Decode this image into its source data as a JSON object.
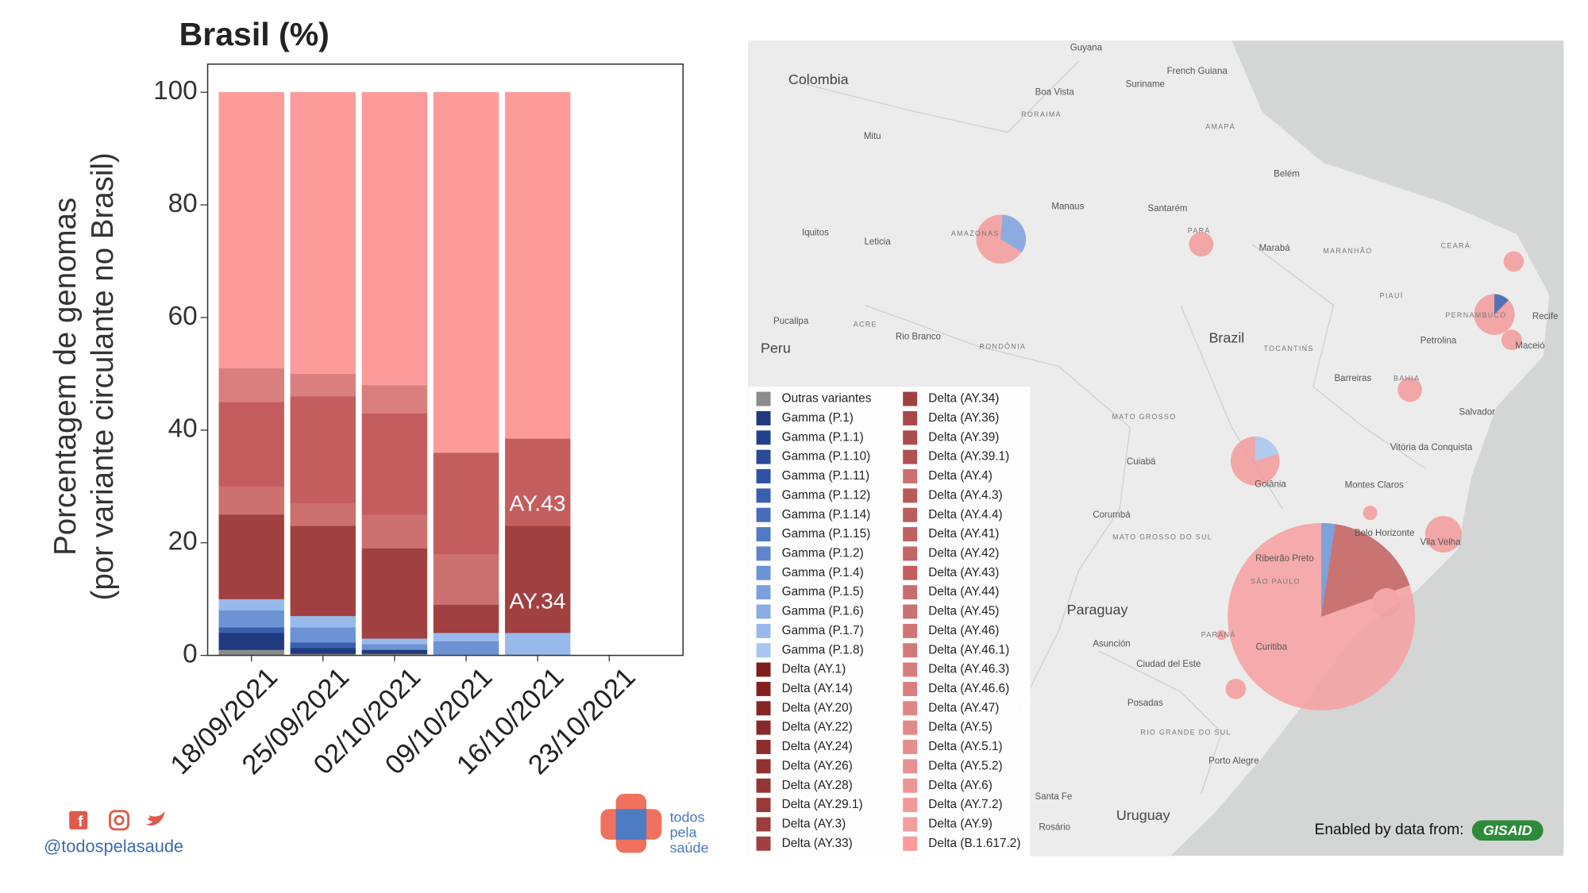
{
  "chart_data": {
    "type": "stacked_bar",
    "title": "Brasil (%)",
    "y_label": [
      "Porcentagem de genomas",
      "(por variante circulante no Brasil)"
    ],
    "categories": [
      "18/09/2021",
      "25/09/2021",
      "02/10/2021",
      "09/10/2021",
      "16/10/2021",
      "23/10/2021"
    ],
    "ylim": [
      0,
      105
    ],
    "yticks": [
      0,
      20,
      40,
      60,
      80,
      100
    ],
    "annotations": [
      {
        "text": "AY.43"
      },
      {
        "text": "AY.34"
      }
    ],
    "series": [
      {
        "name": "Outras variantes",
        "color": "#8c8c8c",
        "values": [
          1,
          0.3,
          0.3,
          0,
          0,
          null
        ]
      },
      {
        "name": "Gamma (P.1)",
        "color": "#1f3a7e",
        "values": [
          3,
          1,
          0.7,
          0,
          0,
          null
        ]
      },
      {
        "name": "Gamma (P.1.1)",
        "color": "#22418b",
        "values": [
          0,
          0,
          0,
          0,
          0,
          null
        ]
      },
      {
        "name": "Gamma (P.1.10)",
        "color": "#284a97",
        "values": [
          0,
          0,
          0,
          0,
          0,
          null
        ]
      },
      {
        "name": "Gamma (P.1.11)",
        "color": "#2e53a3",
        "values": [
          0,
          0,
          0,
          0,
          0,
          null
        ]
      },
      {
        "name": "Gamma (P.1.12)",
        "color": "#3a5fae",
        "values": [
          1,
          1,
          0,
          0,
          0,
          null
        ]
      },
      {
        "name": "Gamma (P.1.14)",
        "color": "#466cb9",
        "values": [
          0,
          0,
          0,
          0,
          0,
          null
        ]
      },
      {
        "name": "Gamma (P.1.15)",
        "color": "#5279c3",
        "values": [
          0,
          0,
          0,
          0,
          0,
          null
        ]
      },
      {
        "name": "Gamma (P.1.2)",
        "color": "#5f86cc",
        "values": [
          0,
          0,
          0,
          0,
          0,
          null
        ]
      },
      {
        "name": "Gamma (P.1.4)",
        "color": "#6d93d5",
        "values": [
          3,
          2.7,
          1,
          2.5,
          0,
          null
        ]
      },
      {
        "name": "Gamma (P.1.5)",
        "color": "#7ba0dd",
        "values": [
          0,
          0,
          0,
          0,
          0,
          null
        ]
      },
      {
        "name": "Gamma (P.1.6)",
        "color": "#89ade4",
        "values": [
          0,
          0,
          0,
          0,
          0,
          null
        ]
      },
      {
        "name": "Gamma (P.1.7)",
        "color": "#98baea",
        "values": [
          2,
          2,
          1,
          1.5,
          4,
          null
        ]
      },
      {
        "name": "Gamma (P.1.8)",
        "color": "#a8c6f0",
        "values": [
          0,
          0,
          0,
          0,
          0,
          null
        ]
      },
      {
        "name": "Delta (AY.1)",
        "color": "#7f1d1d",
        "values": [
          0,
          0,
          0,
          0,
          0,
          null
        ]
      },
      {
        "name": "Delta (AY.14)",
        "color": "#832121",
        "values": [
          0,
          0,
          0,
          0,
          0,
          null
        ]
      },
      {
        "name": "Delta (AY.20)",
        "color": "#862525",
        "values": [
          0,
          0,
          0,
          0,
          0,
          null
        ]
      },
      {
        "name": "Delta (AY.22)",
        "color": "#8a2929",
        "values": [
          0,
          0,
          0,
          0,
          0,
          null
        ]
      },
      {
        "name": "Delta (AY.24)",
        "color": "#8e2d2d",
        "values": [
          0,
          0,
          0,
          0,
          0,
          null
        ]
      },
      {
        "name": "Delta (AY.26)",
        "color": "#913131",
        "values": [
          0,
          0,
          0,
          0,
          0,
          null
        ]
      },
      {
        "name": "Delta (AY.28)",
        "color": "#953535",
        "values": [
          0,
          0,
          0,
          0,
          0,
          null
        ]
      },
      {
        "name": "Delta (AY.29.1)",
        "color": "#993939",
        "values": [
          0,
          0,
          0,
          0,
          0,
          null
        ]
      },
      {
        "name": "Delta (AY.3)",
        "color": "#9c3d3d",
        "values": [
          0,
          0,
          0,
          0,
          0,
          null
        ]
      },
      {
        "name": "Delta (AY.33)",
        "color": "#a04141",
        "values": [
          0,
          0,
          0,
          0,
          0,
          null
        ]
      },
      {
        "name": "Delta (AY.34)",
        "color": "#a04040",
        "values": [
          15,
          16,
          16,
          5,
          19,
          null
        ]
      },
      {
        "name": "Delta (AY.36)",
        "color": "#a74949",
        "values": [
          0,
          0,
          0,
          0,
          0,
          null
        ]
      },
      {
        "name": "Delta (AY.39)",
        "color": "#ab4d4d",
        "values": [
          0,
          0,
          0,
          0,
          0,
          null
        ]
      },
      {
        "name": "Delta (AY.39.1)",
        "color": "#af5151",
        "values": [
          0,
          0,
          0,
          0,
          0,
          null
        ]
      },
      {
        "name": "Delta (AY.4)",
        "color": "#cc7070",
        "values": [
          5,
          4,
          6,
          9,
          0,
          null
        ]
      },
      {
        "name": "Delta (AY.4.3)",
        "color": "#b65959",
        "values": [
          0,
          0,
          0,
          0,
          0,
          null
        ]
      },
      {
        "name": "Delta (AY.4.4)",
        "color": "#ba5d5d",
        "values": [
          0,
          0,
          0,
          0,
          0,
          null
        ]
      },
      {
        "name": "Delta (AY.41)",
        "color": "#bd6161",
        "values": [
          0,
          0,
          0,
          0,
          0,
          null
        ]
      },
      {
        "name": "Delta (AY.42)",
        "color": "#c16565",
        "values": [
          0,
          0,
          0,
          0,
          0,
          null
        ]
      },
      {
        "name": "Delta (AY.43)",
        "color": "#c45e5e",
        "values": [
          15,
          19,
          18,
          18,
          15.5,
          null
        ]
      },
      {
        "name": "Delta (AY.44)",
        "color": "#c86d6d",
        "values": [
          0,
          0,
          0,
          0,
          0,
          null
        ]
      },
      {
        "name": "Delta (AY.45)",
        "color": "#cc7171",
        "values": [
          0,
          0,
          0,
          0,
          0,
          null
        ]
      },
      {
        "name": "Delta (AY.46)",
        "color": "#d07575",
        "values": [
          0,
          0,
          0,
          0,
          0,
          null
        ]
      },
      {
        "name": "Delta (AY.46.1)",
        "color": "#d37979",
        "values": [
          0,
          0,
          0,
          0,
          0,
          null
        ]
      },
      {
        "name": "Delta (AY.46.3)",
        "color": "#d77d7d",
        "values": [
          0,
          0,
          0,
          0,
          0,
          null
        ]
      },
      {
        "name": "Delta (AY.46.6)",
        "color": "#d97f7f",
        "values": [
          6,
          4,
          5,
          0,
          0,
          null
        ]
      },
      {
        "name": "Delta (AY.47)",
        "color": "#de8585",
        "values": [
          0,
          0,
          0,
          0,
          0,
          null
        ]
      },
      {
        "name": "Delta (AY.5)",
        "color": "#e28989",
        "values": [
          0,
          0,
          0,
          0,
          0,
          null
        ]
      },
      {
        "name": "Delta (AY.5.1)",
        "color": "#e68d8d",
        "values": [
          0,
          0,
          0,
          0,
          0,
          null
        ]
      },
      {
        "name": "Delta (AY.5.2)",
        "color": "#e99191",
        "values": [
          0,
          0,
          0,
          0,
          0,
          null
        ]
      },
      {
        "name": "Delta (AY.6)",
        "color": "#ed9595",
        "values": [
          0,
          0,
          0,
          0,
          0,
          null
        ]
      },
      {
        "name": "Delta (AY.7.2)",
        "color": "#f19999",
        "values": [
          0,
          0,
          0,
          0,
          0,
          null
        ]
      },
      {
        "name": "Delta (AY.9)",
        "color": "#f49d9d",
        "values": [
          0,
          0,
          0,
          0,
          0,
          null
        ]
      },
      {
        "name": "Delta (B.1.617.2)",
        "color": "#fd9a9a",
        "values": [
          49,
          50,
          52,
          64,
          61.5,
          null
        ]
      }
    ]
  },
  "map": {
    "labels": [
      "Guyana",
      "French Guiana",
      "Colombia",
      "Suriname",
      "Boa Vista",
      "RORAIMA",
      "AMAPÁ",
      "Mitu",
      "Belém",
      "Manaus",
      "Santarém",
      "Iquitos",
      "Leticia",
      "AMAZONAS",
      "PARÁ",
      "Marabá",
      "MARANHÃO",
      "CEARÁ",
      "PIAUÍ",
      "Pucallpa",
      "ACRE",
      "Rio Branco",
      "RONDÔNIA",
      "Brazil",
      "TOCANTINS",
      "Peru",
      "PERNAMBUCO",
      "Recife",
      "Petrolina",
      "Maceió",
      "Barreiras",
      "BAHIA",
      "Salvador",
      "MATO GROSSO",
      "Cuiabá",
      "Goiânia",
      "Vitória da Conquista",
      "Montes Claros",
      "Corumbá",
      "MATO GROSSO DO SUL",
      "Belo Horizonte",
      "Vila Velha",
      "Paraguay",
      "Ribeirão Preto",
      "SÃO PAULO",
      "PARANÁ",
      "Curitiba",
      "Asunción",
      "Ciudad del Este",
      "Posadas",
      "RIO GRANDE DO SUL",
      "Porto Alegre",
      "Santa Fe",
      "Rosário",
      "Uruguay"
    ],
    "credit": "Enabled by data from:",
    "logo": "GISAID"
  },
  "footer": {
    "handle": "@todospelasaude",
    "logo_text": [
      "todos",
      "pela",
      "saúde"
    ]
  }
}
